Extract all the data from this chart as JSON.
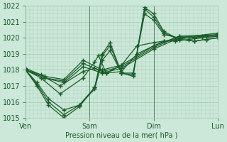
{
  "title": "",
  "xlabel": "Pression niveau de la mer( hPa )",
  "ylim": [
    1015,
    1022
  ],
  "yticks": [
    1015,
    1016,
    1017,
    1018,
    1019,
    1020,
    1021,
    1022
  ],
  "xtick_labels": [
    "Ven",
    "Sam",
    "Dim",
    "Lun"
  ],
  "xtick_positions": [
    0,
    0.333,
    0.667,
    1.0
  ],
  "bg_color": "#cce8d8",
  "grid_color": "#9ec8b0",
  "line_color": "#1a5c2a",
  "series": [
    {
      "x": [
        0.0,
        0.08,
        0.18,
        0.3,
        0.36,
        0.38,
        0.42,
        0.5,
        0.58,
        0.667,
        0.72,
        0.78,
        0.85,
        0.92,
        1.0
      ],
      "y": [
        1018.0,
        1017.7,
        1017.0,
        1017.9,
        1018.1,
        1018.0,
        1017.8,
        1018.3,
        1019.5,
        1019.7,
        1019.8,
        1019.8,
        1019.9,
        1020.0,
        1020.1
      ]
    },
    {
      "x": [
        0.0,
        0.08,
        0.18,
        0.3,
        0.36,
        0.38,
        0.42,
        0.5,
        0.58,
        0.667,
        0.72,
        0.78,
        0.85,
        0.92,
        1.0
      ],
      "y": [
        1018.0,
        1017.5,
        1016.5,
        1017.5,
        1018.5,
        1018.9,
        1017.8,
        1017.9,
        1019.0,
        1019.5,
        1019.8,
        1019.9,
        1020.0,
        1020.1,
        1020.2
      ]
    },
    {
      "x": [
        0.0,
        0.06,
        0.12,
        0.2,
        0.28,
        0.36,
        0.4,
        0.44,
        0.5,
        0.56,
        0.62,
        0.667,
        0.72,
        0.8,
        0.88,
        0.94,
        1.0
      ],
      "y": [
        1018.0,
        1017.2,
        1016.2,
        1015.5,
        1015.8,
        1016.8,
        1018.6,
        1019.2,
        1017.8,
        1017.8,
        1021.5,
        1021.1,
        1020.2,
        1020.0,
        1020.0,
        1020.1,
        1020.2
      ]
    },
    {
      "x": [
        0.0,
        0.06,
        0.12,
        0.2,
        0.28,
        0.36,
        0.4,
        0.44,
        0.5,
        0.56,
        0.62,
        0.667,
        0.72,
        0.8,
        0.88,
        0.94,
        1.0
      ],
      "y": [
        1018.0,
        1017.1,
        1016.0,
        1015.2,
        1015.8,
        1016.9,
        1018.9,
        1019.5,
        1017.8,
        1017.7,
        1021.8,
        1021.3,
        1020.3,
        1019.9,
        1019.8,
        1019.9,
        1020.0
      ]
    },
    {
      "x": [
        0.0,
        0.06,
        0.12,
        0.2,
        0.28,
        0.36,
        0.4,
        0.44,
        0.5,
        0.56,
        0.62,
        0.667,
        0.72,
        0.8,
        0.88,
        0.94,
        1.0
      ],
      "y": [
        1018.0,
        1017.0,
        1015.8,
        1015.0,
        1015.7,
        1016.9,
        1019.0,
        1019.7,
        1017.8,
        1017.6,
        1021.9,
        1021.5,
        1020.4,
        1019.9,
        1019.8,
        1019.9,
        1020.0
      ]
    },
    {
      "x": [
        0.0,
        0.1,
        0.2,
        0.3,
        0.4,
        0.5,
        0.667,
        0.8,
        1.0
      ],
      "y": [
        1018.0,
        1017.5,
        1017.2,
        1018.2,
        1017.8,
        1018.1,
        1019.3,
        1020.0,
        1020.3
      ]
    },
    {
      "x": [
        0.0,
        0.1,
        0.2,
        0.3,
        0.4,
        0.5,
        0.667,
        0.8,
        1.0
      ],
      "y": [
        1018.0,
        1017.5,
        1017.3,
        1018.4,
        1017.9,
        1018.2,
        1019.4,
        1020.1,
        1020.2
      ]
    },
    {
      "x": [
        0.0,
        0.1,
        0.2,
        0.3,
        0.4,
        0.5,
        0.667,
        0.8,
        1.0
      ],
      "y": [
        1018.1,
        1017.6,
        1017.4,
        1018.6,
        1018.0,
        1018.3,
        1019.5,
        1020.1,
        1020.1
      ]
    }
  ],
  "marker": "+",
  "marker_size": 5,
  "linewidth": 0.9
}
